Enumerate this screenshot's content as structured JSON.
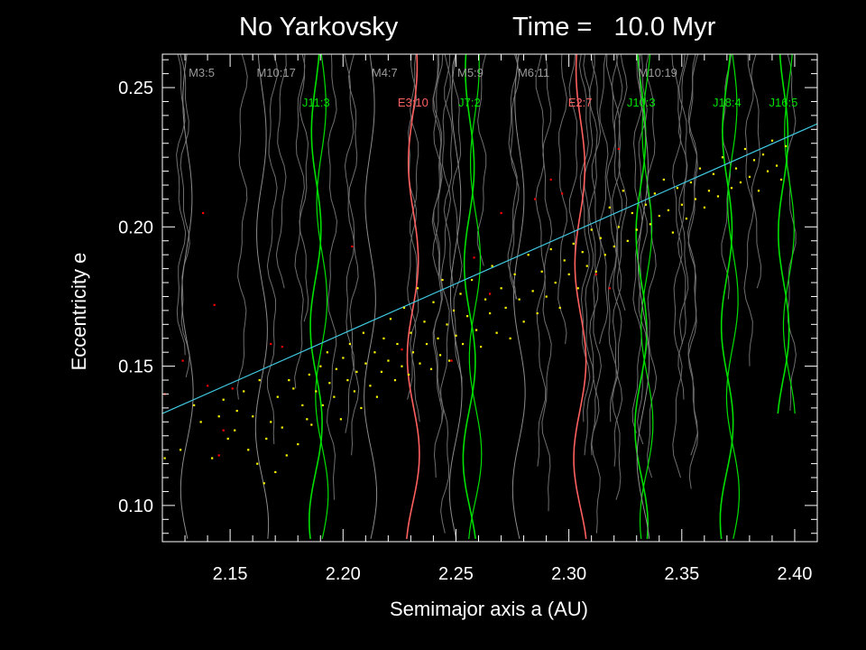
{
  "title_left": "No Yarkovsky",
  "title_right": "Time =   10.0 Myr",
  "colors": {
    "background": "#000000",
    "axes": "#ffffff",
    "mars_resonance": "#8c8c8c",
    "earth_resonance": "#ff6060",
    "jupiter_resonance": "#00e000",
    "particle_stable": "#ffff00",
    "particle_escaped": "#ff0000",
    "fit_line": "#40c8e0"
  },
  "chart_data": {
    "type": "scatter",
    "xlabel": "Semimajor axis a (AU)",
    "ylabel": "Eccentricity e",
    "xlim": [
      2.12,
      2.41
    ],
    "ylim": [
      0.087,
      0.262
    ],
    "x_ticks": [
      "2.15",
      "2.20",
      "2.25",
      "2.30",
      "2.35",
      "2.40"
    ],
    "y_ticks": [
      "0.10",
      "0.15",
      "0.20",
      "0.25"
    ],
    "grid": false,
    "fit_line": {
      "x": [
        2.12,
        2.41
      ],
      "y": [
        0.133,
        0.237
      ]
    },
    "resonances": [
      {
        "label": "M3:5",
        "group": "mars",
        "a": 2.131
      },
      {
        "label": "M10:17",
        "group": "mars",
        "a": 2.164
      },
      {
        "label": "J11:3",
        "group": "jupiter",
        "a": 2.188
      },
      {
        "label": "M4:7",
        "group": "mars",
        "a": 2.212
      },
      {
        "label": "E3:10",
        "group": "earth",
        "a": 2.231
      },
      {
        "label": "M5:9",
        "group": "mars",
        "a": 2.25
      },
      {
        "label": "J7:2",
        "group": "jupiter",
        "a": 2.256
      },
      {
        "label": "M6:11",
        "group": "mars",
        "a": 2.278
      },
      {
        "label": "E2:7",
        "group": "earth",
        "a": 2.305
      },
      {
        "label": "J10:3",
        "group": "jupiter",
        "a": 2.332
      },
      {
        "label": "M10:19",
        "group": "mars",
        "a": 2.333
      },
      {
        "label": "J18:4",
        "group": "jupiter",
        "a": 2.37
      },
      {
        "label": "J16:5",
        "group": "jupiter",
        "a": 2.395
      }
    ],
    "series": [
      {
        "group": "stable",
        "points": [
          [
            2.121,
            0.117
          ],
          [
            2.128,
            0.12
          ],
          [
            2.134,
            0.136
          ],
          [
            2.137,
            0.13
          ],
          [
            2.142,
            0.117
          ],
          [
            2.145,
            0.132
          ],
          [
            2.147,
            0.138
          ],
          [
            2.149,
            0.124
          ],
          [
            2.152,
            0.127
          ],
          [
            2.153,
            0.134
          ],
          [
            2.156,
            0.141
          ],
          [
            2.158,
            0.12
          ],
          [
            2.16,
            0.132
          ],
          [
            2.162,
            0.115
          ],
          [
            2.163,
            0.145
          ],
          [
            2.165,
            0.108
          ],
          [
            2.166,
            0.124
          ],
          [
            2.168,
            0.13
          ],
          [
            2.17,
            0.112
          ],
          [
            2.171,
            0.139
          ],
          [
            2.173,
            0.128
          ],
          [
            2.175,
            0.118
          ],
          [
            2.176,
            0.145
          ],
          [
            2.178,
            0.142
          ],
          [
            2.18,
            0.122
          ],
          [
            2.182,
            0.136
          ],
          [
            2.184,
            0.131
          ],
          [
            2.185,
            0.147
          ],
          [
            2.186,
            0.129
          ],
          [
            2.188,
            0.141
          ],
          [
            2.19,
            0.15
          ],
          [
            2.191,
            0.136
          ],
          [
            2.193,
            0.155
          ],
          [
            2.194,
            0.144
          ],
          [
            2.196,
            0.139
          ],
          [
            2.197,
            0.149
          ],
          [
            2.199,
            0.131
          ],
          [
            2.2,
            0.153
          ],
          [
            2.202,
            0.145
          ],
          [
            2.203,
            0.158
          ],
          [
            2.205,
            0.141
          ],
          [
            2.206,
            0.148
          ],
          [
            2.208,
            0.135
          ],
          [
            2.209,
            0.162
          ],
          [
            2.21,
            0.151
          ],
          [
            2.212,
            0.143
          ],
          [
            2.214,
            0.155
          ],
          [
            2.215,
            0.139
          ],
          [
            2.217,
            0.148
          ],
          [
            2.218,
            0.16
          ],
          [
            2.22,
            0.152
          ],
          [
            2.221,
            0.167
          ],
          [
            2.223,
            0.145
          ],
          [
            2.224,
            0.158
          ],
          [
            2.226,
            0.15
          ],
          [
            2.227,
            0.171
          ],
          [
            2.229,
            0.147
          ],
          [
            2.23,
            0.162
          ],
          [
            2.231,
            0.155
          ],
          [
            2.233,
            0.178
          ],
          [
            2.234,
            0.151
          ],
          [
            2.236,
            0.166
          ],
          [
            2.237,
            0.158
          ],
          [
            2.239,
            0.149
          ],
          [
            2.24,
            0.173
          ],
          [
            2.242,
            0.16
          ],
          [
            2.243,
            0.154
          ],
          [
            2.244,
            0.181
          ],
          [
            2.246,
            0.165
          ],
          [
            2.247,
            0.152
          ],
          [
            2.249,
            0.17
          ],
          [
            2.25,
            0.161
          ],
          [
            2.252,
            0.176
          ],
          [
            2.253,
            0.158
          ],
          [
            2.255,
            0.168
          ],
          [
            2.257,
            0.181
          ],
          [
            2.259,
            0.163
          ],
          [
            2.261,
            0.157
          ],
          [
            2.263,
            0.174
          ],
          [
            2.265,
            0.169
          ],
          [
            2.266,
            0.186
          ],
          [
            2.268,
            0.162
          ],
          [
            2.27,
            0.178
          ],
          [
            2.272,
            0.171
          ],
          [
            2.274,
            0.16
          ],
          [
            2.276,
            0.183
          ],
          [
            2.278,
            0.174
          ],
          [
            2.28,
            0.166
          ],
          [
            2.282,
            0.19
          ],
          [
            2.284,
            0.177
          ],
          [
            2.286,
            0.169
          ],
          [
            2.288,
            0.184
          ],
          [
            2.29,
            0.175
          ],
          [
            2.292,
            0.192
          ],
          [
            2.294,
            0.18
          ],
          [
            2.296,
            0.171
          ],
          [
            2.298,
            0.188
          ],
          [
            2.3,
            0.183
          ],
          [
            2.302,
            0.194
          ],
          [
            2.304,
            0.178
          ],
          [
            2.306,
            0.191
          ],
          [
            2.308,
            0.186
          ],
          [
            2.31,
            0.199
          ],
          [
            2.312,
            0.184
          ],
          [
            2.314,
            0.196
          ],
          [
            2.316,
            0.19
          ],
          [
            2.318,
            0.207
          ],
          [
            2.32,
            0.193
          ],
          [
            2.322,
            0.2
          ],
          [
            2.324,
            0.213
          ],
          [
            2.326,
            0.195
          ],
          [
            2.328,
            0.205
          ],
          [
            2.33,
            0.199
          ],
          [
            2.334,
            0.208
          ],
          [
            2.336,
            0.201
          ],
          [
            2.338,
            0.212
          ],
          [
            2.34,
            0.204
          ],
          [
            2.342,
            0.217
          ],
          [
            2.344,
            0.206
          ],
          [
            2.346,
            0.198
          ],
          [
            2.348,
            0.214
          ],
          [
            2.35,
            0.208
          ],
          [
            2.352,
            0.203
          ],
          [
            2.354,
            0.216
          ],
          [
            2.356,
            0.21
          ],
          [
            2.358,
            0.221
          ],
          [
            2.36,
            0.207
          ],
          [
            2.362,
            0.213
          ],
          [
            2.364,
            0.219
          ],
          [
            2.366,
            0.211
          ],
          [
            2.368,
            0.225
          ],
          [
            2.372,
            0.214
          ],
          [
            2.374,
            0.221
          ],
          [
            2.376,
            0.216
          ],
          [
            2.378,
            0.228
          ],
          [
            2.38,
            0.218
          ],
          [
            2.382,
            0.224
          ],
          [
            2.384,
            0.213
          ],
          [
            2.386,
            0.226
          ],
          [
            2.388,
            0.22
          ],
          [
            2.39,
            0.231
          ],
          [
            2.392,
            0.222
          ],
          [
            2.394,
            0.217
          ],
          [
            2.396,
            0.229
          ]
        ]
      },
      {
        "group": "escaped",
        "points": [
          [
            2.121,
            0.14
          ],
          [
            2.129,
            0.152
          ],
          [
            2.138,
            0.205
          ],
          [
            2.14,
            0.143
          ],
          [
            2.143,
            0.172
          ],
          [
            2.145,
            0.118
          ],
          [
            2.147,
            0.127
          ],
          [
            2.151,
            0.142
          ],
          [
            2.168,
            0.158
          ],
          [
            2.173,
            0.157
          ],
          [
            2.204,
            0.193
          ],
          [
            2.226,
            0.156
          ],
          [
            2.248,
            0.152
          ],
          [
            2.258,
            0.189
          ],
          [
            2.265,
            0.176
          ],
          [
            2.27,
            0.205
          ],
          [
            2.285,
            0.21
          ],
          [
            2.292,
            0.217
          ],
          [
            2.297,
            0.212
          ],
          [
            2.312,
            0.183
          ],
          [
            2.318,
            0.178
          ],
          [
            2.322,
            0.228
          ]
        ]
      }
    ]
  }
}
